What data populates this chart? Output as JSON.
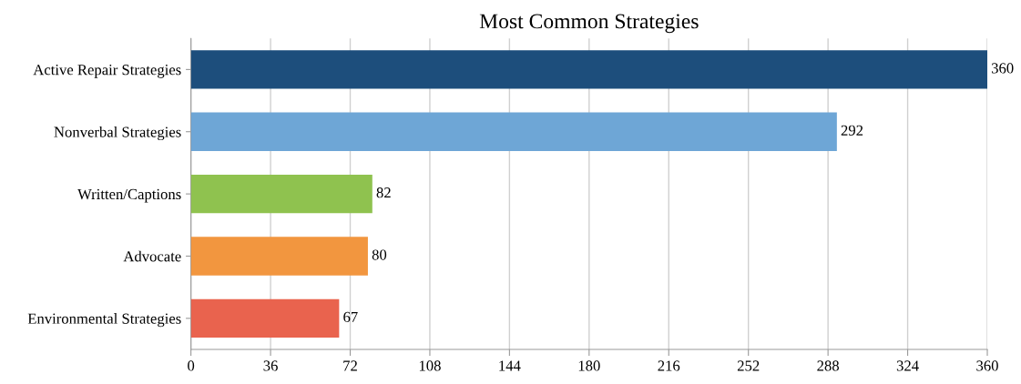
{
  "chart_data": {
    "type": "bar",
    "orientation": "horizontal",
    "title": "Most Common Strategies",
    "categories": [
      "Active Repair Strategies",
      "Nonverbal Strategies",
      "Written/Captions",
      "Advocate",
      "Environmental Strategies"
    ],
    "values": [
      360,
      292,
      82,
      80,
      67
    ],
    "colors": [
      "#1d4e7c",
      "#6ea6d6",
      "#8fc24f",
      "#f2963f",
      "#e9634e"
    ],
    "xlim": [
      0,
      360
    ],
    "xticks": [
      0,
      36,
      72,
      108,
      144,
      180,
      216,
      252,
      288,
      324,
      360
    ],
    "grid": "x",
    "data_labels": true
  }
}
